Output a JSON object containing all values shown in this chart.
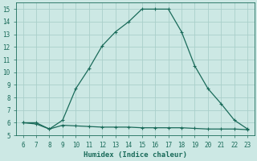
{
  "x": [
    6,
    7,
    8,
    9,
    10,
    11,
    12,
    13,
    14,
    15,
    16,
    17,
    18,
    19,
    20,
    21,
    22,
    23
  ],
  "y_main": [
    6.0,
    6.0,
    5.5,
    6.2,
    8.7,
    10.3,
    12.1,
    13.2,
    14.0,
    15.0,
    15.0,
    15.0,
    13.2,
    10.5,
    8.7,
    7.5,
    6.2,
    5.5
  ],
  "y_flat": [
    6.0,
    5.9,
    5.5,
    5.8,
    5.75,
    5.7,
    5.65,
    5.65,
    5.65,
    5.6,
    5.6,
    5.6,
    5.6,
    5.55,
    5.5,
    5.5,
    5.5,
    5.45
  ],
  "line_color": "#1a6b5a",
  "bg_color": "#cce8e4",
  "grid_color": "#aacfca",
  "xlabel": "Humidex (Indice chaleur)",
  "xlim": [
    5.5,
    23.5
  ],
  "ylim": [
    5.0,
    15.5
  ],
  "xticks": [
    6,
    7,
    8,
    9,
    10,
    11,
    12,
    13,
    14,
    15,
    16,
    17,
    18,
    19,
    20,
    21,
    22,
    23
  ],
  "yticks": [
    5,
    6,
    7,
    8,
    9,
    10,
    11,
    12,
    13,
    14,
    15
  ],
  "markersize": 3.5,
  "linewidth": 0.9
}
